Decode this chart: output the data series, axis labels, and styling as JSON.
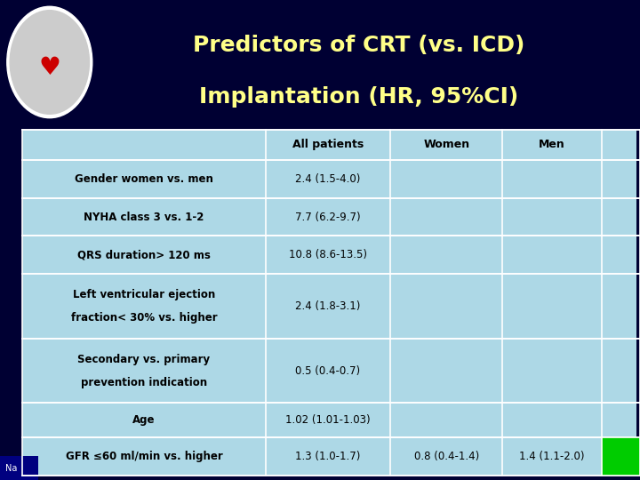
{
  "title_line1": "Predictors of CRT (vs. ICD)",
  "title_line2": "Implantation (HR, 95%CI)",
  "title_color": "#FFFF88",
  "title_bg": "#080808",
  "table_bg": "#ADD8E6",
  "col_headers": [
    "",
    "All patients",
    "Women",
    "Men",
    "Gender women\nvs. men"
  ],
  "rows": [
    {
      "label": "Gender women vs. men",
      "label2": "",
      "values": [
        "2.4 (1.5-4.0)",
        "",
        "",
        ""
      ]
    },
    {
      "label": "NYHA class 3 vs. 1-2",
      "label2": "",
      "values": [
        "7.7 (6.2-9.7)",
        "",
        "",
        ""
      ]
    },
    {
      "label": "QRS duration> 120 ms",
      "label2": "",
      "values": [
        "10.8 (8.6-13.5)",
        "",
        "",
        ""
      ]
    },
    {
      "label": "Left ventricular ejection",
      "label2": "fraction< 30% vs. higher",
      "values": [
        "2.4 (1.8-3.1)",
        "",
        "",
        ""
      ]
    },
    {
      "label": "Secondary vs. primary",
      "label2": "prevention indication",
      "values": [
        "0.5 (0.4-0.7)",
        "",
        "",
        ""
      ]
    },
    {
      "label": "Age",
      "label2": "",
      "values": [
        "1.02 (1.01-1.03)",
        "",
        "",
        ""
      ]
    },
    {
      "label": "GFR ≤60 ml/min vs. higher",
      "label2": "",
      "values": [
        "1.3 (1.0-1.7)",
        "0.8 (0.4-1.4)",
        "1.4 (1.1-2.0)",
        ""
      ]
    }
  ],
  "last_row_val_bgs": [
    "#ADD8E6",
    "#ADD8E6",
    "#ADD8E6",
    "#00CC00"
  ],
  "outer_bg": "#000033",
  "nav_bar_color": "#000080",
  "line_color": "#FFFFFF",
  "text_color": "#000000"
}
